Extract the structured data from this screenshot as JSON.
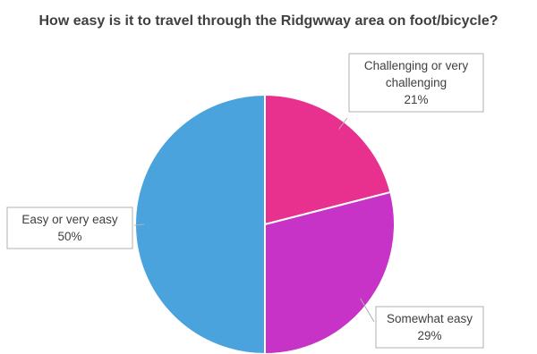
{
  "chart_data": {
    "type": "pie",
    "title": "How easy is it to travel through the Ridgwway area on foot/bicycle?",
    "slices": [
      {
        "label_lines": [
          "Challenging or very",
          "challenging"
        ],
        "value": 21,
        "value_label": "21%",
        "color": "#e8318f"
      },
      {
        "label_lines": [
          "Somewhat easy"
        ],
        "value": 29,
        "value_label": "29%",
        "color": "#c733c6"
      },
      {
        "label_lines": [
          "Easy or very easy"
        ],
        "value": 50,
        "value_label": "50%",
        "color": "#4aa3dc"
      }
    ],
    "start_angle": "12 o'clock, clockwise",
    "legend": "none"
  }
}
